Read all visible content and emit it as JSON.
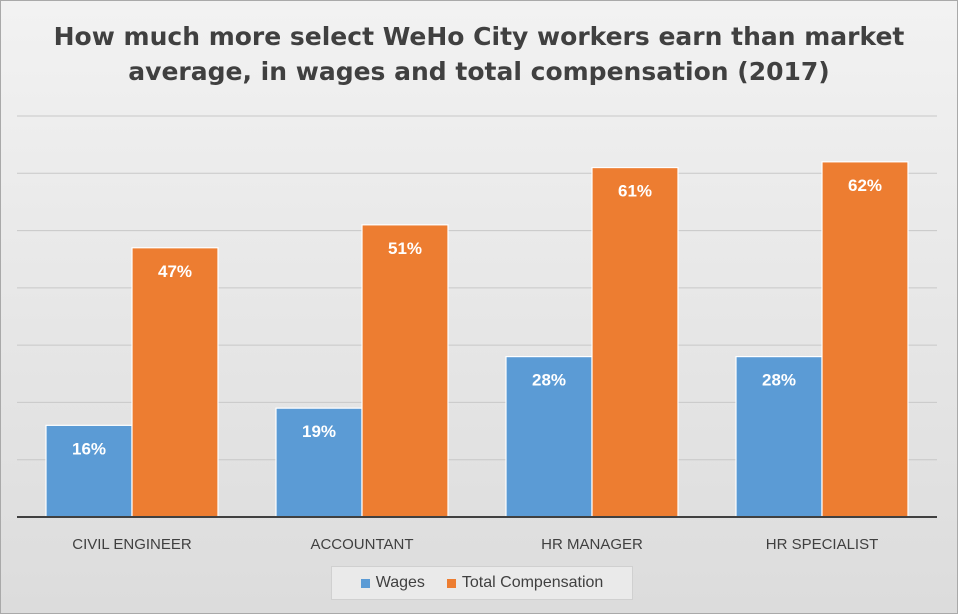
{
  "chart_data": {
    "type": "bar",
    "title": "How much more select WeHo City workers earn than market average, in wages and total compensation (2017)",
    "categories": [
      "CIVIL ENGINEER",
      "ACCOUNTANT",
      "HR MANAGER",
      "HR SPECIALIST"
    ],
    "series": [
      {
        "name": "Wages",
        "values": [
          16,
          19,
          28,
          28
        ],
        "labels": [
          "16%",
          "19%",
          "28%",
          "28%"
        ],
        "color": "#5b9bd5"
      },
      {
        "name": "Total Compensation",
        "values": [
          47,
          51,
          61,
          62
        ],
        "labels": [
          "47%",
          "51%",
          "61%",
          "62%"
        ],
        "color": "#ed7d31"
      }
    ],
    "ylim": [
      0,
      70
    ],
    "grid": true,
    "legend_position": "bottom",
    "xlabel": "",
    "ylabel": ""
  }
}
